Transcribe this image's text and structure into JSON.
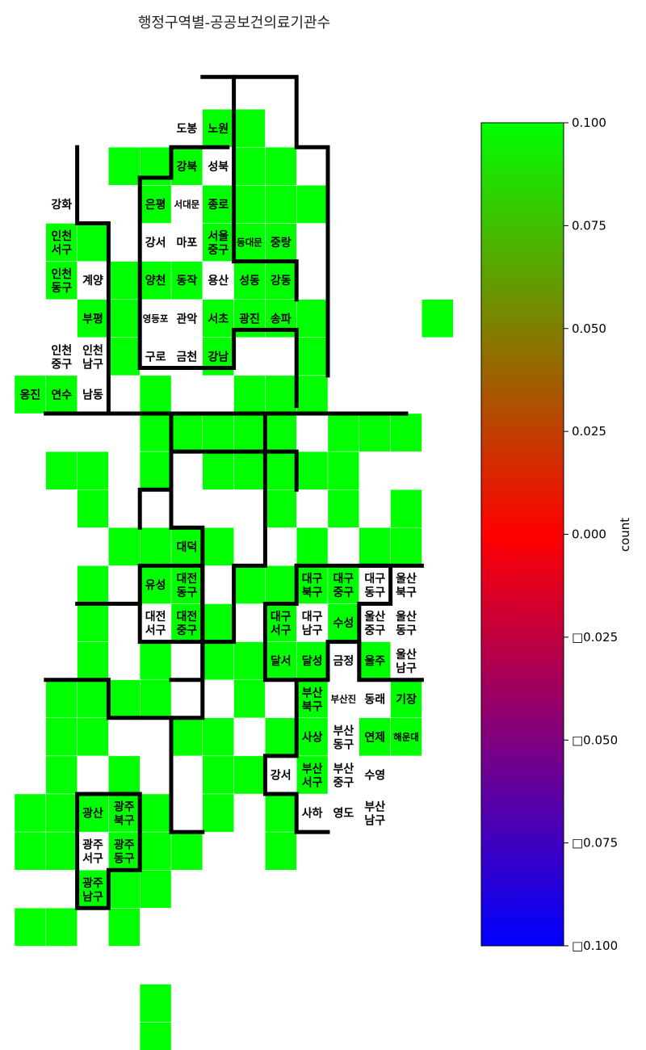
{
  "title": "행정구역별-공공보건의료기관수",
  "chart_data": {
    "type": "heatmap",
    "title": "행정구역별-공공보건의료기관수",
    "colorbar": {
      "label": "count",
      "range": [
        -0.1,
        0.1
      ],
      "ticks": [
        "0.100",
        "0.075",
        "0.050",
        "0.025",
        "0.000",
        "□0.025",
        "□0.050",
        "□0.075",
        "□0.100"
      ],
      "tick_values": [
        0.1,
        0.075,
        0.05,
        0.025,
        0.0,
        -0.025,
        -0.05,
        -0.075,
        -0.1
      ],
      "colors": {
        "top": "#00ff00",
        "middle": "#ff0000",
        "bottom": "#0000ff"
      }
    },
    "colors": {
      "filled": "#00ff00",
      "empty": "#ffffff",
      "border": "#000000"
    },
    "labeled_tiles": [
      {
        "label": "도봉",
        "row": 2,
        "col": 5,
        "value": null
      },
      {
        "label": "노원",
        "row": 2,
        "col": 6,
        "value": 0.1
      },
      {
        "label": "강북",
        "row": 3,
        "col": 5,
        "value": 0.1
      },
      {
        "label": "성북",
        "row": 3,
        "col": 6,
        "value": null
      },
      {
        "label": "강화",
        "row": 4,
        "col": 1,
        "value": null
      },
      {
        "label": "은평",
        "row": 4,
        "col": 4,
        "value": 0.1
      },
      {
        "label": "서대문",
        "row": 4,
        "col": 5,
        "value": null
      },
      {
        "label": "종로",
        "row": 4,
        "col": 6,
        "value": 0.1
      },
      {
        "label": "인천\n서구",
        "row": 5,
        "col": 1,
        "value": 0.1
      },
      {
        "label": "강서",
        "row": 5,
        "col": 4,
        "value": null
      },
      {
        "label": "마포",
        "row": 5,
        "col": 5,
        "value": null
      },
      {
        "label": "서울\n중구",
        "row": 5,
        "col": 6,
        "value": 0.1
      },
      {
        "label": "동대문",
        "row": 5,
        "col": 7,
        "value": 0.1
      },
      {
        "label": "중랑",
        "row": 5,
        "col": 8,
        "value": 0.1
      },
      {
        "label": "인천\n동구",
        "row": 6,
        "col": 1,
        "value": 0.1
      },
      {
        "label": "계양",
        "row": 6,
        "col": 2,
        "value": null
      },
      {
        "label": "양천",
        "row": 6,
        "col": 4,
        "value": 0.1
      },
      {
        "label": "동작",
        "row": 6,
        "col": 5,
        "value": 0.1
      },
      {
        "label": "용산",
        "row": 6,
        "col": 6,
        "value": null
      },
      {
        "label": "성동",
        "row": 6,
        "col": 7,
        "value": 0.1
      },
      {
        "label": "강동",
        "row": 6,
        "col": 8,
        "value": 0.1
      },
      {
        "label": "부평",
        "row": 7,
        "col": 2,
        "value": 0.1
      },
      {
        "label": "영등포",
        "row": 7,
        "col": 4,
        "value": null
      },
      {
        "label": "관악",
        "row": 7,
        "col": 5,
        "value": null
      },
      {
        "label": "서초",
        "row": 7,
        "col": 6,
        "value": 0.1
      },
      {
        "label": "광진",
        "row": 7,
        "col": 7,
        "value": 0.1
      },
      {
        "label": "송파",
        "row": 7,
        "col": 8,
        "value": 0.1
      },
      {
        "label": "인천\n중구",
        "row": 8,
        "col": 1,
        "value": null
      },
      {
        "label": "인천\n남구",
        "row": 8,
        "col": 2,
        "value": null
      },
      {
        "label": "구로",
        "row": 8,
        "col": 4,
        "value": null
      },
      {
        "label": "금천",
        "row": 8,
        "col": 5,
        "value": null
      },
      {
        "label": "강남",
        "row": 8,
        "col": 6,
        "value": 0.1
      },
      {
        "label": "옹진",
        "row": 9,
        "col": 0,
        "value": 0.1
      },
      {
        "label": "연수",
        "row": 9,
        "col": 1,
        "value": 0.1
      },
      {
        "label": "남동",
        "row": 9,
        "col": 2,
        "value": null
      },
      {
        "label": "대덕",
        "row": 13,
        "col": 5,
        "value": 0.1
      },
      {
        "label": "대구\n북구",
        "row": 14,
        "col": 9,
        "value": 0.1
      },
      {
        "label": "대구\n중구",
        "row": 14,
        "col": 10,
        "value": 0.1
      },
      {
        "label": "대구\n동구",
        "row": 14,
        "col": 11,
        "value": null
      },
      {
        "label": "울산\n북구",
        "row": 14,
        "col": 12,
        "value": null
      },
      {
        "label": "유성",
        "row": 14,
        "col": 4,
        "value": 0.1
      },
      {
        "label": "대전\n동구",
        "row": 14,
        "col": 5,
        "value": 0.1
      },
      {
        "label": "대전\n서구",
        "row": 15,
        "col": 4,
        "value": null
      },
      {
        "label": "대전\n중구",
        "row": 15,
        "col": 5,
        "value": 0.1
      },
      {
        "label": "대구\n서구",
        "row": 15,
        "col": 8,
        "value": 0.1
      },
      {
        "label": "대구\n남구",
        "row": 15,
        "col": 9,
        "value": null
      },
      {
        "label": "수성",
        "row": 15,
        "col": 10,
        "value": 0.1
      },
      {
        "label": "울산\n중구",
        "row": 15,
        "col": 11,
        "value": null
      },
      {
        "label": "울산\n동구",
        "row": 15,
        "col": 12,
        "value": null
      },
      {
        "label": "달서",
        "row": 16,
        "col": 8,
        "value": 0.1
      },
      {
        "label": "달성",
        "row": 16,
        "col": 9,
        "value": 0.1
      },
      {
        "label": "금정",
        "row": 16,
        "col": 10,
        "value": null
      },
      {
        "label": "울주",
        "row": 16,
        "col": 11,
        "value": 0.1
      },
      {
        "label": "울산\n남구",
        "row": 16,
        "col": 12,
        "value": null
      },
      {
        "label": "부산\n북구",
        "row": 17,
        "col": 9,
        "value": 0.1
      },
      {
        "label": "부산진",
        "row": 17,
        "col": 10,
        "value": null
      },
      {
        "label": "동래",
        "row": 17,
        "col": 11,
        "value": null
      },
      {
        "label": "기장",
        "row": 17,
        "col": 12,
        "value": 0.1
      },
      {
        "label": "사상",
        "row": 18,
        "col": 9,
        "value": 0.1
      },
      {
        "label": "부산\n동구",
        "row": 18,
        "col": 10,
        "value": null
      },
      {
        "label": "연제",
        "row": 18,
        "col": 11,
        "value": 0.1
      },
      {
        "label": "해운대",
        "row": 18,
        "col": 12,
        "value": 0.1
      },
      {
        "label": "강서",
        "row": 19,
        "col": 8,
        "value": null
      },
      {
        "label": "부산\n서구",
        "row": 19,
        "col": 9,
        "value": 0.1
      },
      {
        "label": "부산\n중구",
        "row": 19,
        "col": 10,
        "value": null
      },
      {
        "label": "수영",
        "row": 19,
        "col": 11,
        "value": null
      },
      {
        "label": "광산",
        "row": 20,
        "col": 2,
        "value": 0.1
      },
      {
        "label": "광주\n북구",
        "row": 20,
        "col": 3,
        "value": 0.1
      },
      {
        "label": "사하",
        "row": 20,
        "col": 9,
        "value": null
      },
      {
        "label": "영도",
        "row": 20,
        "col": 10,
        "value": null
      },
      {
        "label": "부산\n남구",
        "row": 20,
        "col": 11,
        "value": null
      },
      {
        "label": "광주\n서구",
        "row": 21,
        "col": 2,
        "value": null
      },
      {
        "label": "광주\n동구",
        "row": 21,
        "col": 3,
        "value": 0.1
      },
      {
        "label": "광주\n남구",
        "row": 22,
        "col": 2,
        "value": 0.1
      }
    ],
    "unlabeled_filled_tiles": [
      [
        2,
        7
      ],
      [
        3,
        3
      ],
      [
        3,
        4
      ],
      [
        3,
        7
      ],
      [
        3,
        8
      ],
      [
        4,
        7
      ],
      [
        4,
        8
      ],
      [
        4,
        9
      ],
      [
        5,
        2
      ],
      [
        6,
        3
      ],
      [
        7,
        3
      ],
      [
        7,
        9
      ],
      [
        7,
        13
      ],
      [
        8,
        3
      ],
      [
        8,
        9
      ],
      [
        9,
        4
      ],
      [
        9,
        7
      ],
      [
        9,
        8
      ],
      [
        9,
        9
      ],
      [
        10,
        4
      ],
      [
        10,
        5
      ],
      [
        10,
        6
      ],
      [
        10,
        7
      ],
      [
        10,
        8
      ],
      [
        10,
        10
      ],
      [
        10,
        11
      ],
      [
        10,
        12
      ],
      [
        11,
        1
      ],
      [
        11,
        2
      ],
      [
        11,
        4
      ],
      [
        11,
        6
      ],
      [
        11,
        7
      ],
      [
        11,
        8
      ],
      [
        11,
        9
      ],
      [
        11,
        10
      ],
      [
        12,
        2
      ],
      [
        12,
        8
      ],
      [
        12,
        10
      ],
      [
        12,
        12
      ],
      [
        13,
        3
      ],
      [
        13,
        4
      ],
      [
        13,
        6
      ],
      [
        13,
        9
      ],
      [
        13,
        11
      ],
      [
        13,
        12
      ],
      [
        14,
        2
      ],
      [
        14,
        7
      ],
      [
        14,
        8
      ],
      [
        15,
        2
      ],
      [
        15,
        6
      ],
      [
        16,
        2
      ],
      [
        16,
        4
      ],
      [
        16,
        6
      ],
      [
        16,
        7
      ],
      [
        17,
        1
      ],
      [
        17,
        2
      ],
      [
        17,
        3
      ],
      [
        17,
        4
      ],
      [
        17,
        7
      ],
      [
        18,
        1
      ],
      [
        18,
        2
      ],
      [
        18,
        5
      ],
      [
        18,
        6
      ],
      [
        18,
        8
      ],
      [
        19,
        1
      ],
      [
        19,
        3
      ],
      [
        19,
        6
      ],
      [
        19,
        7
      ],
      [
        20,
        0
      ],
      [
        20,
        1
      ],
      [
        20,
        4
      ],
      [
        20,
        6
      ],
      [
        20,
        8
      ],
      [
        21,
        0
      ],
      [
        21,
        1
      ],
      [
        21,
        4
      ],
      [
        21,
        5
      ],
      [
        21,
        8
      ],
      [
        22,
        3
      ],
      [
        22,
        4
      ],
      [
        23,
        0
      ],
      [
        23,
        1
      ],
      [
        23,
        3
      ],
      [
        25,
        4
      ],
      [
        26,
        4
      ]
    ]
  }
}
